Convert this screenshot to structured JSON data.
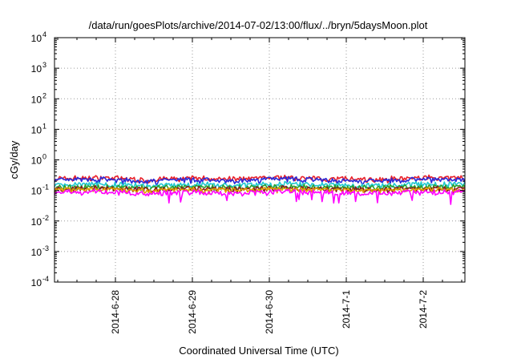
{
  "chart_data": {
    "type": "line",
    "title": "/data/run/goesPlots/archive/2014-07-02/13:00/flux/../bryn/5daysMoon.plot",
    "xlabel": "Coordinated Universal Time (UTC)",
    "ylabel": "cGy/day",
    "x_range": [
      "2014-06-27T05:00",
      "2014-07-02T13:00"
    ],
    "x_ticks": [
      "2014-6-28",
      "2014-6-29",
      "2014-6-30",
      "2014-7-1",
      "2014-7-2"
    ],
    "y_scale": "log",
    "ylim": [
      0.0001,
      10000
    ],
    "y_tick_base": "10",
    "y_tick_exponents": [
      "4",
      "3",
      "2",
      "1",
      "0",
      "-1",
      "-2",
      "-3",
      "-4"
    ],
    "grid": true,
    "series": [
      {
        "color": "#e8202a",
        "values": [
          0.24,
          0.26,
          0.22,
          0.25,
          0.23,
          0.27,
          0.24,
          0.22,
          0.26,
          0.25
        ]
      },
      {
        "color": "#2a2ad8",
        "values": [
          0.21,
          0.23,
          0.19,
          0.22,
          0.2,
          0.24,
          0.21,
          0.19,
          0.23,
          0.22
        ]
      },
      {
        "color": "#20c8d0",
        "values": [
          0.15,
          0.16,
          0.14,
          0.155,
          0.145,
          0.165,
          0.15,
          0.14,
          0.16,
          0.155
        ]
      },
      {
        "color": "#2ca02c",
        "values": [
          0.125,
          0.13,
          0.12,
          0.128,
          0.122,
          0.132,
          0.125,
          0.12,
          0.13,
          0.127
        ]
      },
      {
        "color": "#8b1a1a",
        "values": [
          0.11,
          0.115,
          0.105,
          0.112,
          0.108,
          0.116,
          0.11,
          0.106,
          0.114,
          0.112
        ]
      },
      {
        "color": "#e0a000",
        "values": [
          0.1,
          0.104,
          0.096,
          0.102,
          0.098,
          0.105,
          0.1,
          0.097,
          0.103,
          0.101
        ]
      },
      {
        "color": "#ff00ff",
        "values": [
          0.085,
          0.09,
          0.075,
          0.088,
          0.08,
          0.092,
          0.084,
          0.078,
          0.09,
          0.086
        ]
      }
    ]
  }
}
